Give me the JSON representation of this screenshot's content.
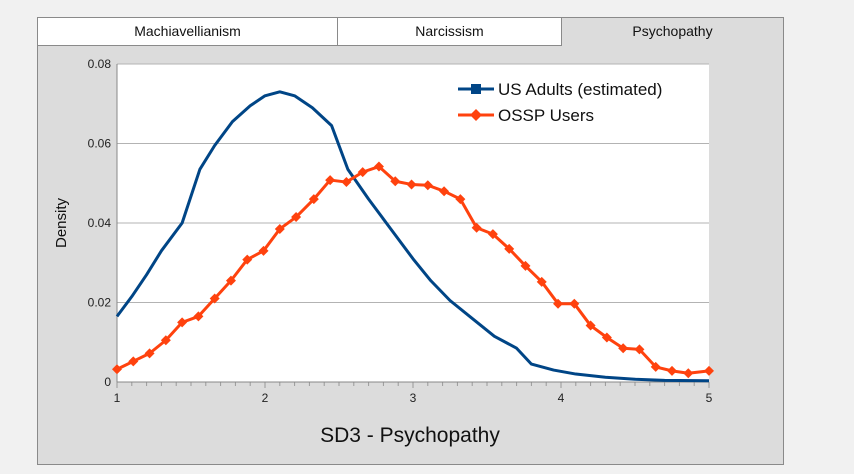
{
  "tabs": [
    {
      "label": "Machiavellianism",
      "active": false
    },
    {
      "label": "Narcissism",
      "active": false
    },
    {
      "label": "Psychopathy",
      "active": true
    }
  ],
  "colors": {
    "us_adults": "#004586",
    "ossp_users": "#ff420e",
    "grid": "#b3b3b3",
    "plot_bg": "#ffffff"
  },
  "chart_data": {
    "type": "line",
    "title": "",
    "xlabel": "SD3 - Psychopathy",
    "ylabel": "Density",
    "xlim": [
      1,
      5
    ],
    "ylim": [
      0,
      0.08
    ],
    "x_ticks": [
      "1",
      "2",
      "3",
      "4",
      "5"
    ],
    "y_ticks": [
      "0",
      "0.02",
      "0.04",
      "0.06",
      "0.08"
    ],
    "grid": true,
    "legend_position": "top-right",
    "series": [
      {
        "name": "US Adults (estimated)",
        "marker": "square",
        "points": [
          [
            1.0,
            0.0165
          ],
          [
            1.1,
            0.0215
          ],
          [
            1.2,
            0.027
          ],
          [
            1.3,
            0.033
          ],
          [
            1.44,
            0.04
          ],
          [
            1.56,
            0.0535
          ],
          [
            1.66,
            0.0595
          ],
          [
            1.78,
            0.0655
          ],
          [
            1.9,
            0.0695
          ],
          [
            2.0,
            0.072
          ],
          [
            2.1,
            0.073
          ],
          [
            2.2,
            0.072
          ],
          [
            2.32,
            0.069
          ],
          [
            2.45,
            0.0645
          ],
          [
            2.56,
            0.0535
          ],
          [
            2.7,
            0.046
          ],
          [
            2.85,
            0.0385
          ],
          [
            3.0,
            0.031
          ],
          [
            3.12,
            0.0255
          ],
          [
            3.25,
            0.0205
          ],
          [
            3.4,
            0.016
          ],
          [
            3.55,
            0.0115
          ],
          [
            3.7,
            0.0085
          ],
          [
            3.8,
            0.0045
          ],
          [
            3.95,
            0.003
          ],
          [
            4.1,
            0.002
          ],
          [
            4.3,
            0.0012
          ],
          [
            4.5,
            0.0007
          ],
          [
            4.7,
            0.0004
          ],
          [
            5.0,
            0.0003
          ]
        ]
      },
      {
        "name": "OSSP Users",
        "marker": "diamond",
        "points": [
          [
            1.0,
            0.0032
          ],
          [
            1.11,
            0.0052
          ],
          [
            1.22,
            0.0072
          ],
          [
            1.33,
            0.0105
          ],
          [
            1.44,
            0.015
          ],
          [
            1.55,
            0.0165
          ],
          [
            1.66,
            0.021
          ],
          [
            1.77,
            0.0255
          ],
          [
            1.88,
            0.0308
          ],
          [
            1.99,
            0.033
          ],
          [
            2.1,
            0.0385
          ],
          [
            2.21,
            0.0415
          ],
          [
            2.33,
            0.046
          ],
          [
            2.44,
            0.0508
          ],
          [
            2.55,
            0.0503
          ],
          [
            2.66,
            0.0528
          ],
          [
            2.77,
            0.0542
          ],
          [
            2.88,
            0.0505
          ],
          [
            2.99,
            0.0497
          ],
          [
            3.1,
            0.0495
          ],
          [
            3.21,
            0.048
          ],
          [
            3.32,
            0.046
          ],
          [
            3.43,
            0.0388
          ],
          [
            3.54,
            0.0372
          ],
          [
            3.65,
            0.0335
          ],
          [
            3.76,
            0.0292
          ],
          [
            3.87,
            0.0252
          ],
          [
            3.98,
            0.0197
          ],
          [
            4.09,
            0.0197
          ],
          [
            4.2,
            0.0142
          ],
          [
            4.31,
            0.0112
          ],
          [
            4.42,
            0.0085
          ],
          [
            4.53,
            0.0082
          ],
          [
            4.64,
            0.0038
          ],
          [
            4.75,
            0.0028
          ],
          [
            4.86,
            0.0022
          ],
          [
            5.0,
            0.0028
          ]
        ]
      }
    ]
  }
}
